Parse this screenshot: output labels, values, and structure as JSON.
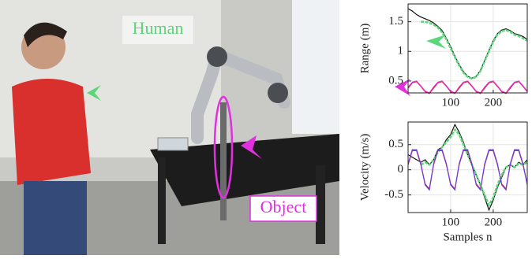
{
  "photo": {
    "labels": [
      "Human",
      "Object"
    ]
  },
  "chart_data": [
    {
      "type": "line",
      "ylabel": "Range (m)",
      "x": [
        0,
        10,
        20,
        30,
        40,
        50,
        60,
        70,
        80,
        90,
        100,
        110,
        120,
        130,
        140,
        150,
        160,
        170,
        180,
        190,
        200,
        210,
        220,
        230,
        240,
        250,
        260,
        270,
        280
      ],
      "xlim": [
        0,
        280
      ],
      "xticks": [
        100,
        200
      ],
      "ylim": [
        0.3,
        1.8
      ],
      "yticks": [
        0.5,
        1,
        1.5
      ],
      "grid": true,
      "series": [
        {
          "color": "#111111",
          "values": [
            1.72,
            1.68,
            1.62,
            1.58,
            1.55,
            1.52,
            1.48,
            1.42,
            1.35,
            1.22,
            1.08,
            0.92,
            0.78,
            0.66,
            0.58,
            0.55,
            0.58,
            0.68,
            0.85,
            1.02,
            1.18,
            1.3,
            1.36,
            1.38,
            1.35,
            1.3,
            1.28,
            1.25,
            1.2
          ]
        },
        {
          "color": "#5cd67a",
          "values": [
            null,
            null,
            null,
            1.5,
            1.5,
            1.48,
            1.45,
            1.4,
            1.32,
            1.2,
            1.05,
            0.9,
            0.76,
            0.64,
            0.57,
            0.54,
            0.57,
            0.67,
            0.84,
            1.0,
            1.16,
            1.28,
            1.34,
            1.36,
            1.33,
            1.28,
            1.26,
            1.22,
            1.18
          ]
        },
        {
          "color": "#d62020",
          "values": [
            0.38,
            0.47,
            0.49,
            0.41,
            0.32,
            0.29,
            0.38,
            0.47,
            0.49,
            0.41,
            0.32,
            0.29,
            0.38,
            0.47,
            0.49,
            0.41,
            0.32,
            0.29,
            0.38,
            0.47,
            0.49,
            0.41,
            0.32,
            0.29,
            0.38,
            0.47,
            0.49,
            0.41,
            0.32
          ]
        },
        {
          "color": "#e030e0",
          "values": [
            0.4,
            0.48,
            0.5,
            0.42,
            0.33,
            0.3,
            0.4,
            0.48,
            0.5,
            0.42,
            0.33,
            0.3,
            0.4,
            0.48,
            0.5,
            0.42,
            0.33,
            0.3,
            0.4,
            0.48,
            0.5,
            0.42,
            0.33,
            0.3,
            0.4,
            0.48,
            0.5,
            0.42,
            0.33
          ]
        }
      ]
    },
    {
      "type": "line",
      "ylabel": "Velocity (m/s)",
      "xlabel": "Samples n",
      "x": [
        0,
        10,
        20,
        30,
        40,
        50,
        60,
        70,
        80,
        90,
        100,
        110,
        120,
        130,
        140,
        150,
        160,
        170,
        180,
        190,
        200,
        210,
        220,
        230,
        240,
        250,
        260,
        270,
        280
      ],
      "xlim": [
        0,
        280
      ],
      "xticks": [
        100,
        200
      ],
      "ylim": [
        -0.85,
        0.95
      ],
      "yticks": [
        -0.5,
        0,
        0.5
      ],
      "grid": true,
      "series": [
        {
          "color": "#111111",
          "values": [
            0.3,
            0.25,
            0.2,
            0.15,
            0.2,
            0.1,
            0.2,
            0.4,
            0.45,
            0.6,
            0.7,
            0.9,
            0.75,
            0.55,
            0.3,
            0.1,
            -0.1,
            -0.3,
            -0.55,
            -0.8,
            -0.6,
            -0.35,
            -0.15,
            0.05,
            0.1,
            0.05,
            0.15,
            0.1,
            0.2
          ]
        },
        {
          "color": "#5cd67a",
          "values": [
            null,
            null,
            null,
            0.1,
            0.15,
            0.1,
            0.2,
            0.35,
            0.45,
            0.55,
            0.65,
            0.8,
            0.7,
            0.5,
            0.3,
            0.1,
            -0.1,
            -0.3,
            -0.5,
            -0.7,
            -0.55,
            -0.3,
            -0.1,
            0.05,
            0.1,
            0.05,
            0.12,
            0.1,
            0.15
          ]
        },
        {
          "color": "#d62020",
          "values": [
            0.1,
            0.38,
            0.38,
            0.1,
            -0.28,
            -0.38,
            0.1,
            0.38,
            0.38,
            0.1,
            -0.28,
            -0.38,
            0.1,
            0.38,
            0.38,
            0.1,
            -0.28,
            -0.38,
            0.1,
            0.38,
            0.38,
            0.1,
            -0.28,
            -0.38,
            0.1,
            0.38,
            0.38,
            0.1,
            -0.28
          ]
        },
        {
          "color": "#6a3ee0",
          "values": [
            0.12,
            0.4,
            0.4,
            0.12,
            -0.3,
            -0.4,
            0.12,
            0.4,
            0.4,
            0.12,
            -0.3,
            -0.4,
            0.12,
            0.4,
            0.4,
            0.12,
            -0.3,
            -0.4,
            0.12,
            0.4,
            0.4,
            0.12,
            -0.3,
            -0.4,
            0.12,
            0.4,
            0.4,
            0.12,
            -0.3
          ]
        }
      ]
    }
  ]
}
